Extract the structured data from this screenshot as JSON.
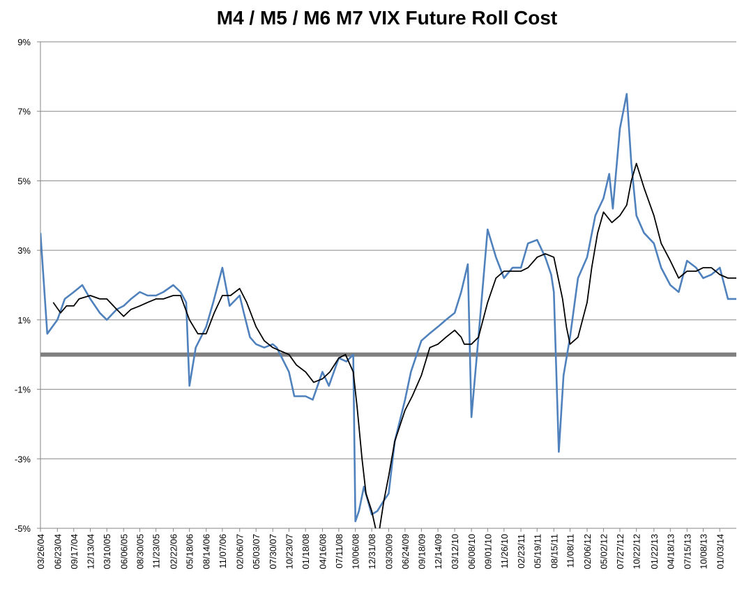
{
  "chart_data": {
    "type": "line",
    "title": "M4 / M5 / M6 M7 VIX Future Roll Cost",
    "xlabel": "",
    "ylabel": "",
    "ylim": [
      -5,
      9
    ],
    "y_ticks": [
      "9%",
      "7%",
      "5%",
      "3%",
      "1%",
      "-1%",
      "-3%",
      "-5%"
    ],
    "y_tick_values": [
      9,
      7,
      5,
      3,
      1,
      -1,
      -3,
      -5
    ],
    "grid": true,
    "legend": "none",
    "x_tick_labels": [
      "03/26/04",
      "06/23/04",
      "09/17/04",
      "12/13/04",
      "03/10/05",
      "06/06/05",
      "08/30/05",
      "11/23/05",
      "02/22/06",
      "05/18/06",
      "08/14/06",
      "11/07/06",
      "02/06/07",
      "05/03/07",
      "07/30/07",
      "10/23/07",
      "01/18/08",
      "04/16/08",
      "07/11/08",
      "10/06/08",
      "12/31/08",
      "03/30/09",
      "06/24/09",
      "09/18/09",
      "12/14/09",
      "03/12/10",
      "06/08/10",
      "09/01/10",
      "11/26/10",
      "02/23/11",
      "05/19/11",
      "08/15/11",
      "11/08/11",
      "02/06/12",
      "05/02/12",
      "07/27/12",
      "10/22/12",
      "01/22/13",
      "04/18/13",
      "07/15/13",
      "10/08/13",
      "01/03/14"
    ],
    "series": [
      {
        "color": "#4F81BD",
        "x": [
          "03/26/04",
          "05/01/04",
          "06/23/04",
          "08/01/04",
          "09/17/04",
          "11/01/04",
          "12/13/04",
          "02/01/05",
          "03/10/05",
          "05/01/05",
          "06/06/05",
          "07/15/05",
          "08/30/05",
          "10/10/05",
          "11/23/05",
          "01/01/06",
          "02/22/06",
          "04/01/06",
          "05/01/06",
          "05/18/06",
          "06/20/06",
          "08/14/06",
          "09/20/06",
          "11/07/06",
          "12/15/06",
          "02/06/07",
          "02/28/07",
          "04/01/07",
          "05/03/07",
          "06/15/07",
          "07/30/07",
          "08/20/07",
          "10/23/07",
          "11/20/07",
          "01/18/08",
          "02/25/08",
          "04/16/08",
          "05/20/08",
          "07/11/08",
          "08/20/08",
          "09/25/08",
          "10/06/08",
          "10/25/08",
          "11/20/08",
          "12/31/08",
          "01/30/09",
          "03/05/09",
          "03/30/09",
          "05/01/09",
          "06/24/09",
          "07/25/09",
          "09/18/09",
          "10/30/09",
          "12/14/09",
          "01/25/10",
          "03/12/10",
          "04/15/10",
          "05/20/10",
          "06/08/10",
          "07/15/10",
          "09/01/10",
          "10/15/10",
          "11/26/10",
          "01/10/11",
          "02/23/11",
          "04/01/11",
          "05/19/11",
          "07/01/11",
          "08/01/11",
          "08/15/11",
          "09/10/11",
          "10/05/11",
          "11/08/11",
          "12/20/11",
          "02/06/12",
          "03/20/12",
          "05/02/12",
          "06/01/12",
          "06/20/12",
          "07/27/12",
          "09/01/12",
          "09/25/12",
          "10/22/12",
          "12/01/12",
          "01/22/13",
          "03/01/13",
          "04/18/13",
          "06/01/13",
          "07/15/13",
          "09/01/13",
          "10/08/13",
          "11/20/13",
          "01/03/14",
          "02/15/14",
          "03/31/14"
        ],
        "values": [
          3.5,
          0.6,
          1.0,
          1.6,
          1.8,
          2.0,
          1.6,
          1.2,
          1.0,
          1.3,
          1.4,
          1.6,
          1.8,
          1.7,
          1.7,
          1.8,
          2.0,
          1.8,
          1.5,
          -0.9,
          0.2,
          0.8,
          1.5,
          2.5,
          1.4,
          1.7,
          1.2,
          0.5,
          0.3,
          0.2,
          0.3,
          0.2,
          -0.5,
          -1.2,
          -1.2,
          -1.3,
          -0.5,
          -0.9,
          -0.1,
          -0.2,
          0.0,
          -4.8,
          -4.5,
          -3.8,
          -4.6,
          -4.5,
          -4.2,
          -4.0,
          -2.5,
          -1.3,
          -0.5,
          0.4,
          0.6,
          0.8,
          1.0,
          1.2,
          1.8,
          2.6,
          -1.8,
          0.5,
          3.6,
          2.8,
          2.2,
          2.5,
          2.5,
          3.2,
          3.3,
          2.8,
          2.3,
          1.8,
          -2.8,
          -0.6,
          0.5,
          2.2,
          2.8,
          4.0,
          4.5,
          5.2,
          4.2,
          6.5,
          7.5,
          5.5,
          4.0,
          3.5,
          3.2,
          2.5,
          2.0,
          1.8,
          2.7,
          2.5,
          2.2,
          2.3,
          2.5,
          1.6,
          1.6
        ]
      },
      {
        "color": "#000000",
        "x": [
          "06/01/04",
          "07/10/04",
          "08/10/04",
          "09/17/04",
          "10/15/04",
          "12/13/04",
          "02/01/05",
          "03/10/05",
          "05/01/05",
          "06/06/05",
          "07/15/05",
          "08/30/05",
          "10/10/05",
          "11/23/05",
          "01/01/06",
          "02/22/06",
          "04/01/06",
          "05/18/06",
          "07/01/06",
          "08/14/06",
          "09/25/06",
          "11/07/06",
          "12/20/06",
          "02/06/07",
          "03/15/07",
          "05/03/07",
          "06/15/07",
          "07/30/07",
          "09/10/07",
          "10/23/07",
          "12/01/07",
          "01/18/08",
          "03/01/08",
          "04/16/08",
          "05/25/08",
          "07/11/08",
          "08/15/08",
          "09/25/08",
          "10/15/08",
          "11/10/08",
          "12/01/08",
          "12/31/08",
          "01/20/09",
          "02/05/09",
          "03/05/09",
          "03/30/09",
          "05/01/09",
          "06/24/09",
          "08/01/09",
          "09/18/09",
          "11/01/09",
          "12/14/09",
          "01/25/10",
          "03/12/10",
          "04/15/10",
          "05/01/10",
          "06/08/10",
          "07/15/10",
          "09/01/10",
          "10/15/10",
          "11/26/10",
          "01/10/11",
          "02/23/11",
          "04/01/11",
          "05/19/11",
          "07/01/11",
          "08/15/11",
          "09/30/11",
          "10/20/11",
          "11/08/11",
          "12/20/11",
          "02/06/12",
          "03/01/12",
          "04/01/12",
          "05/02/12",
          "06/15/12",
          "07/27/12",
          "09/01/12",
          "09/25/12",
          "10/22/12",
          "12/01/12",
          "01/22/13",
          "03/01/13",
          "04/18/13",
          "06/01/13",
          "07/15/13",
          "09/01/13",
          "10/08/13",
          "11/20/13",
          "01/03/14",
          "02/15/14",
          "03/31/14"
        ],
        "values": [
          1.5,
          1.2,
          1.4,
          1.4,
          1.6,
          1.7,
          1.6,
          1.6,
          1.3,
          1.1,
          1.3,
          1.4,
          1.5,
          1.6,
          1.6,
          1.7,
          1.7,
          1.0,
          0.6,
          0.6,
          1.2,
          1.7,
          1.7,
          1.9,
          1.5,
          0.8,
          0.4,
          0.2,
          0.1,
          0.0,
          -0.3,
          -0.5,
          -0.8,
          -0.7,
          -0.5,
          -0.1,
          0.0,
          -0.5,
          -1.5,
          -3.0,
          -4.0,
          -4.5,
          -5.0,
          -5.2,
          -4.2,
          -3.5,
          -2.5,
          -1.6,
          -1.2,
          -0.6,
          0.2,
          0.3,
          0.5,
          0.7,
          0.5,
          0.3,
          0.3,
          0.5,
          1.5,
          2.2,
          2.4,
          2.4,
          2.4,
          2.5,
          2.8,
          2.9,
          2.8,
          1.6,
          0.8,
          0.3,
          0.5,
          1.5,
          2.5,
          3.5,
          4.1,
          3.8,
          4.0,
          4.3,
          5.0,
          5.5,
          4.8,
          4.0,
          3.2,
          2.7,
          2.2,
          2.4,
          2.4,
          2.5,
          2.5,
          2.3,
          2.2,
          2.2
        ]
      }
    ],
    "reference_line": {
      "y": 0,
      "color": "#7F7F7F"
    }
  }
}
